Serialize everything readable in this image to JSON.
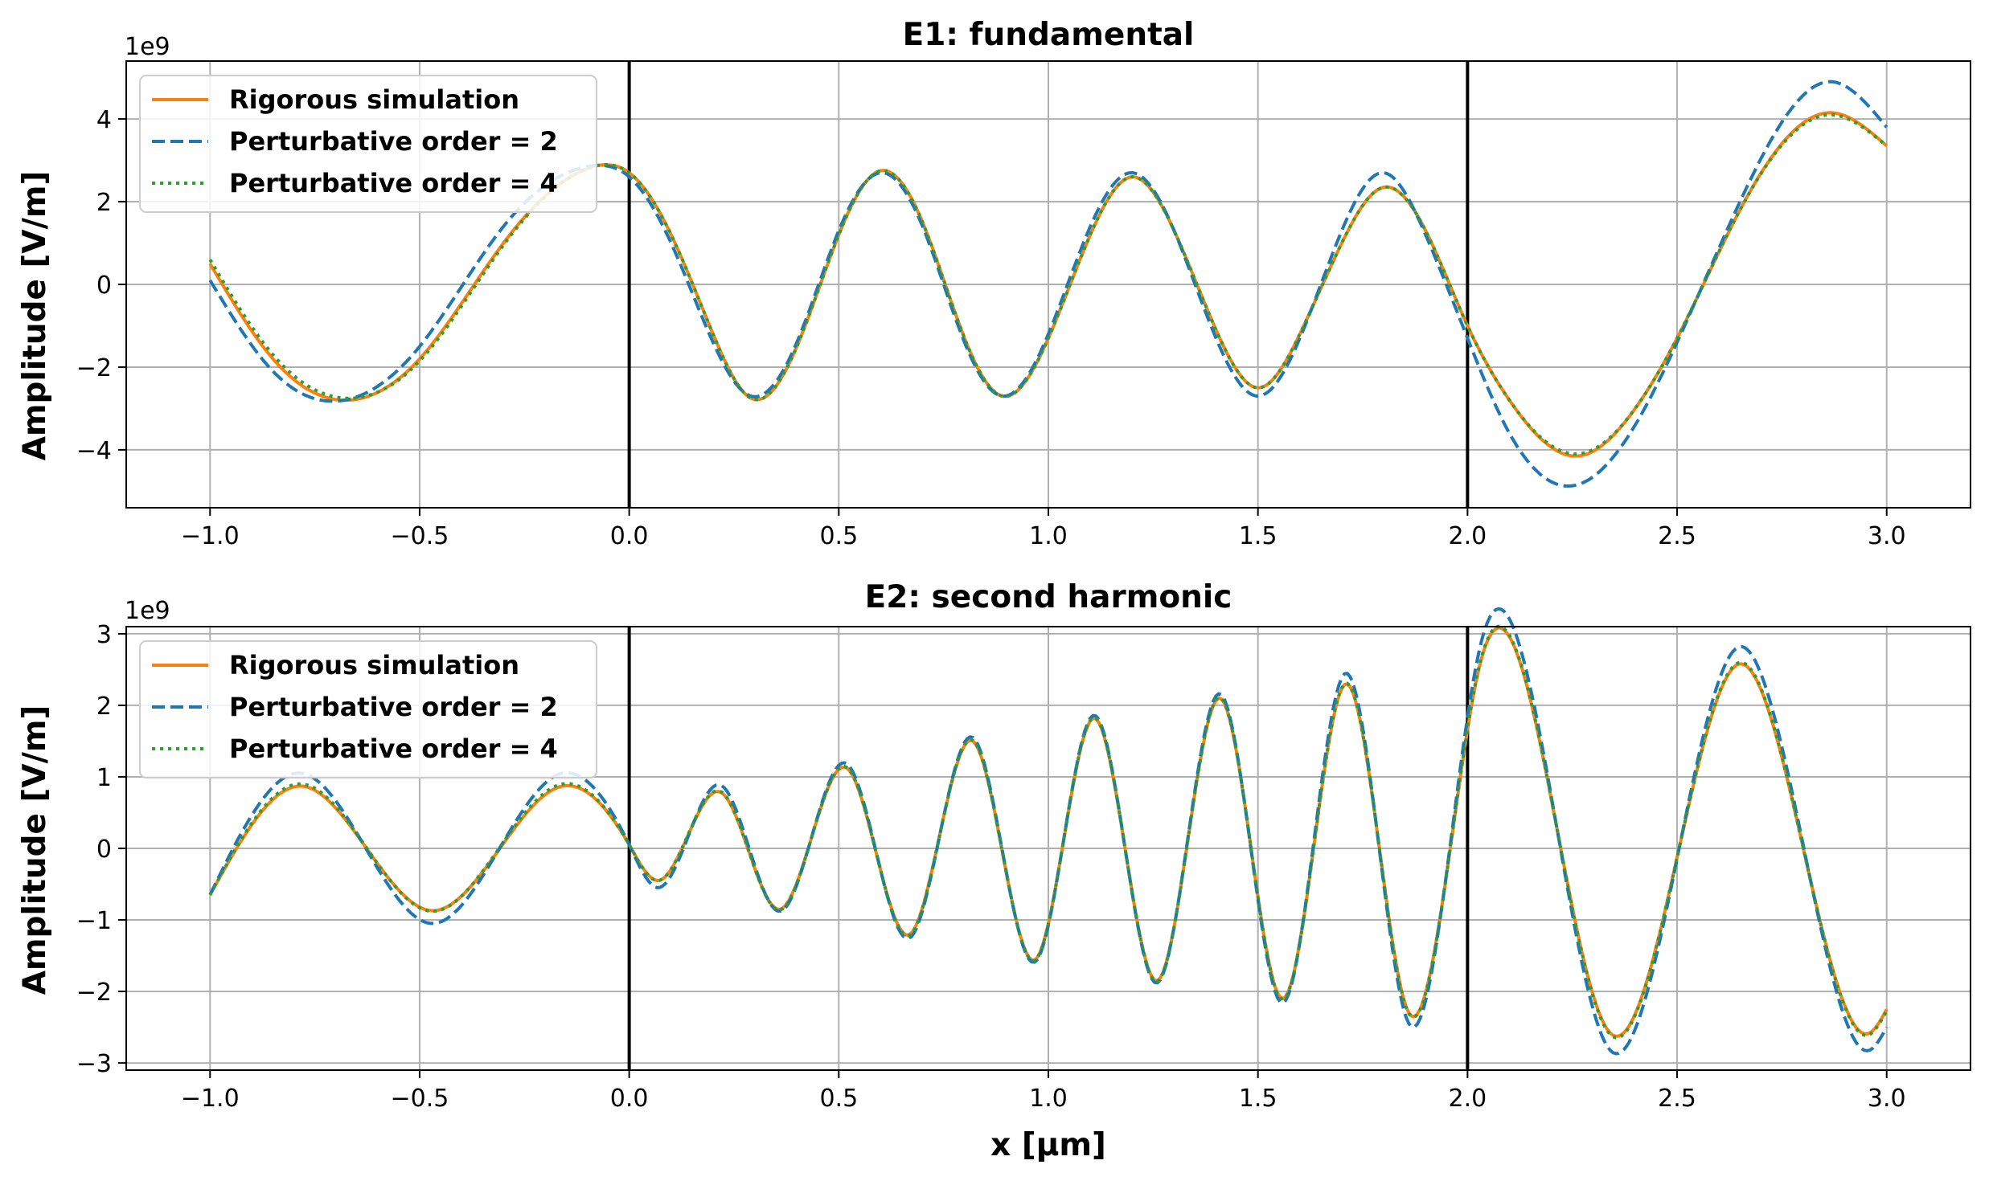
{
  "chart_data": [
    {
      "type": "line",
      "title": "E1: fundamental",
      "xlabel": "",
      "ylabel": "Amplitude [V/m]",
      "y_offset_text": "1e9",
      "xlim": [
        -1.2,
        3.2
      ],
      "ylim": [
        -5.4,
        5.4
      ],
      "x_ticks": [
        -1.0,
        -0.5,
        0.0,
        0.5,
        1.0,
        1.5,
        2.0,
        2.5,
        3.0
      ],
      "x_tick_labels": [
        "−1.0",
        "−0.5",
        "0.0",
        "0.5",
        "1.0",
        "1.5",
        "2.0",
        "2.5",
        "3.0"
      ],
      "y_ticks": [
        -4,
        -2,
        0,
        2,
        4
      ],
      "y_tick_labels": [
        "−4",
        "−2",
        "0",
        "2",
        "4"
      ],
      "grid": true,
      "legend_position": "upper-left",
      "vertical_lines": [
        0.0,
        2.0
      ],
      "series": [
        {
          "name": "Rigorous simulation",
          "color": "#ff7f0e",
          "style": "solid",
          "x": [
            -1.0,
            -0.85,
            -0.68,
            -0.5,
            -0.3,
            -0.1,
            0.0,
            0.1,
            0.2,
            0.29,
            0.4,
            0.5,
            0.6,
            0.7,
            0.8,
            0.89,
            1.0,
            1.1,
            1.2,
            1.3,
            1.4,
            1.5,
            1.6,
            1.7,
            1.8,
            1.9,
            2.0,
            2.1,
            2.26,
            2.4,
            2.5,
            2.65,
            2.87,
            3.0
          ],
          "y": [
            0.5,
            -1.8,
            -2.8,
            -1.8,
            1.0,
            2.8,
            2.7,
            1.2,
            -1.2,
            -2.75,
            -1.5,
            1.2,
            2.75,
            1.5,
            -1.3,
            -2.7,
            -1.3,
            1.2,
            2.6,
            1.3,
            -1.1,
            -2.5,
            -1.2,
            1.0,
            2.35,
            1.3,
            -1.0,
            -2.8,
            -4.15,
            -3.0,
            -1.3,
            1.8,
            4.15,
            3.35
          ]
        },
        {
          "name": "Perturbative order = 2",
          "color": "#1f77b4",
          "style": "dashed",
          "x": [
            -1.0,
            -0.85,
            -0.68,
            -0.5,
            -0.3,
            -0.1,
            0.0,
            0.1,
            0.2,
            0.29,
            0.4,
            0.5,
            0.6,
            0.7,
            0.8,
            0.89,
            1.0,
            1.1,
            1.2,
            1.3,
            1.4,
            1.5,
            1.6,
            1.7,
            1.8,
            1.9,
            2.0,
            2.1,
            2.26,
            2.4,
            2.5,
            2.65,
            2.87,
            3.0
          ],
          "y": [
            0.1,
            -2.1,
            -2.8,
            -1.5,
            1.4,
            2.85,
            2.6,
            1.0,
            -1.4,
            -2.7,
            -1.4,
            1.3,
            2.7,
            1.4,
            -1.4,
            -2.7,
            -1.2,
            1.4,
            2.7,
            1.3,
            -1.3,
            -2.7,
            -1.3,
            1.3,
            2.7,
            1.2,
            -1.3,
            -3.6,
            -4.85,
            -3.4,
            -1.4,
            2.0,
            4.9,
            3.8
          ]
        },
        {
          "name": "Perturbative order = 4",
          "color": "#2ca02c",
          "style": "dotted",
          "x": [
            -1.0,
            -0.85,
            -0.68,
            -0.5,
            -0.3,
            -0.1,
            0.0,
            0.1,
            0.2,
            0.29,
            0.4,
            0.5,
            0.6,
            0.7,
            0.8,
            0.89,
            1.0,
            1.1,
            1.2,
            1.3,
            1.4,
            1.5,
            1.6,
            1.7,
            1.8,
            1.9,
            2.0,
            2.1,
            2.26,
            2.4,
            2.5,
            2.65,
            2.87,
            3.0
          ],
          "y": [
            0.6,
            -1.7,
            -2.75,
            -1.85,
            0.95,
            2.8,
            2.7,
            1.2,
            -1.2,
            -2.75,
            -1.5,
            1.2,
            2.75,
            1.5,
            -1.3,
            -2.7,
            -1.3,
            1.2,
            2.6,
            1.3,
            -1.1,
            -2.5,
            -1.2,
            1.0,
            2.35,
            1.3,
            -1.0,
            -2.8,
            -4.1,
            -3.0,
            -1.3,
            1.8,
            4.1,
            3.35
          ]
        }
      ]
    },
    {
      "type": "line",
      "title": "E2: second harmonic",
      "xlabel": "x [μm]",
      "ylabel": "Amplitude [V/m]",
      "y_offset_text": "1e9",
      "xlim": [
        -1.2,
        3.2
      ],
      "ylim": [
        -3.1,
        3.1
      ],
      "x_ticks": [
        -1.0,
        -0.5,
        0.0,
        0.5,
        1.0,
        1.5,
        2.0,
        2.5,
        3.0
      ],
      "x_tick_labels": [
        "−1.0",
        "−0.5",
        "0.0",
        "0.5",
        "1.0",
        "1.5",
        "2.0",
        "2.5",
        "3.0"
      ],
      "y_ticks": [
        -3,
        -2,
        -1,
        0,
        1,
        2,
        3
      ],
      "y_tick_labels": [
        "−3",
        "−2",
        "−1",
        "0",
        "1",
        "2",
        "3"
      ],
      "grid": true,
      "legend_position": "upper-left",
      "vertical_lines": [
        0.0,
        2.0
      ],
      "series": [
        {
          "name": "Rigorous simulation",
          "color": "#ff7f0e",
          "style": "solid",
          "x": [
            -1.0,
            -0.78,
            -0.47,
            -0.16,
            0.0,
            0.07,
            0.22,
            0.36,
            0.52,
            0.67,
            0.82,
            0.97,
            1.11,
            1.26,
            1.41,
            1.56,
            1.71,
            1.86,
            2.03,
            2.34,
            2.65,
            2.96,
            3.0
          ],
          "y": [
            -0.65,
            0.87,
            -0.87,
            0.87,
            0.05,
            -0.45,
            0.78,
            -0.85,
            1.12,
            -1.2,
            1.5,
            -1.55,
            1.82,
            -1.85,
            2.1,
            -2.1,
            2.3,
            -2.3,
            2.58,
            -2.58,
            2.58,
            -2.58,
            -2.25
          ]
        },
        {
          "name": "Perturbative order = 2",
          "color": "#1f77b4",
          "style": "dashed",
          "x": [
            -1.0,
            -0.78,
            -0.47,
            -0.16,
            0.0,
            0.07,
            0.22,
            0.36,
            0.52,
            0.67,
            0.82,
            0.97,
            1.11,
            1.26,
            1.41,
            1.56,
            1.71,
            1.86,
            2.03,
            2.34,
            2.65,
            2.96,
            3.0
          ],
          "y": [
            -0.65,
            1.05,
            -1.05,
            1.05,
            0.05,
            -0.55,
            0.88,
            -0.88,
            1.18,
            -1.25,
            1.55,
            -1.58,
            1.86,
            -1.88,
            2.16,
            -2.16,
            2.45,
            -2.45,
            2.82,
            -2.82,
            2.82,
            -2.82,
            -2.5
          ]
        },
        {
          "name": "Perturbative order = 4",
          "color": "#2ca02c",
          "style": "dotted",
          "x": [
            -1.0,
            -0.78,
            -0.47,
            -0.16,
            0.0,
            0.07,
            0.22,
            0.36,
            0.52,
            0.67,
            0.82,
            0.97,
            1.11,
            1.26,
            1.41,
            1.56,
            1.71,
            1.86,
            2.03,
            2.34,
            2.65,
            2.96,
            3.0
          ],
          "y": [
            -0.65,
            0.9,
            -0.88,
            0.9,
            0.05,
            -0.45,
            0.79,
            -0.86,
            1.13,
            -1.21,
            1.51,
            -1.56,
            1.83,
            -1.86,
            2.11,
            -2.11,
            2.31,
            -2.31,
            2.6,
            -2.6,
            2.6,
            -2.6,
            -2.27
          ]
        }
      ]
    }
  ]
}
